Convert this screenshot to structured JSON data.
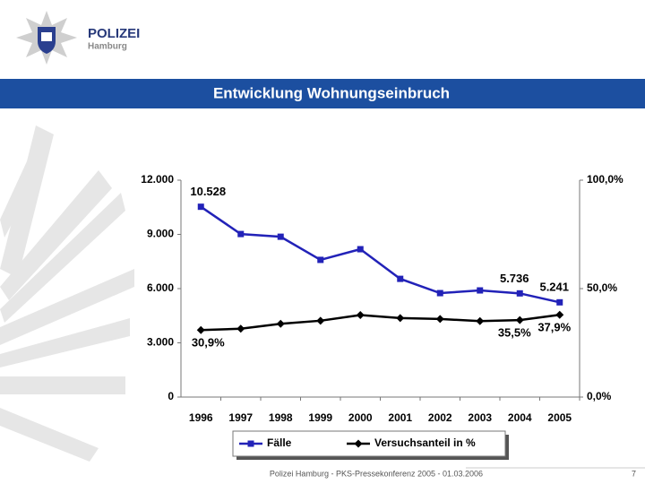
{
  "header": {
    "org": "POLIZEI",
    "city": "Hamburg"
  },
  "footer": {
    "text": "Polizei Hamburg - PKS-Pressekonferenz 2005 - 01.03.2006",
    "page": "7"
  },
  "chart_data": {
    "type": "line",
    "title": "Entwicklung Wohnungseinbruch",
    "categories": [
      "1996",
      "1997",
      "1998",
      "1999",
      "2000",
      "2001",
      "2002",
      "2003",
      "2004",
      "2005"
    ],
    "series": [
      {
        "name": "Fälle",
        "color": "#2222b8",
        "marker": "square",
        "values": [
          10528,
          9020,
          8870,
          7590,
          8180,
          6540,
          5750,
          5900,
          5736,
          5241
        ],
        "value_labels": [
          "10.528",
          null,
          null,
          null,
          null,
          null,
          null,
          null,
          "5.736",
          "5.241"
        ]
      },
      {
        "name": "Versuchsanteil in %",
        "color": "#000000",
        "marker": "diamond",
        "axis": "y2",
        "values": [
          30.9,
          31.5,
          33.8,
          35.2,
          37.8,
          36.4,
          36.0,
          35.0,
          35.5,
          37.9
        ],
        "value_labels": [
          "30,9%",
          null,
          null,
          null,
          null,
          null,
          null,
          null,
          "35,5%",
          "37,9%"
        ]
      }
    ],
    "ylim": [
      0,
      12000
    ],
    "yticks": [
      0,
      {
        "value": 3000,
        "label": "3.000"
      },
      {
        "value": 6000,
        "label": "6.000"
      },
      {
        "value": 9000,
        "label": "9.000"
      },
      {
        "value": 12000,
        "label": "12.000"
      }
    ],
    "y2lim": [
      0,
      100
    ],
    "y2ticks": [
      {
        "value": 0,
        "label": "0,0%"
      },
      {
        "value": 50,
        "label": "50,0%"
      },
      {
        "value": 100,
        "label": "100,0%"
      }
    ],
    "grid": false,
    "legend": "bottom"
  }
}
